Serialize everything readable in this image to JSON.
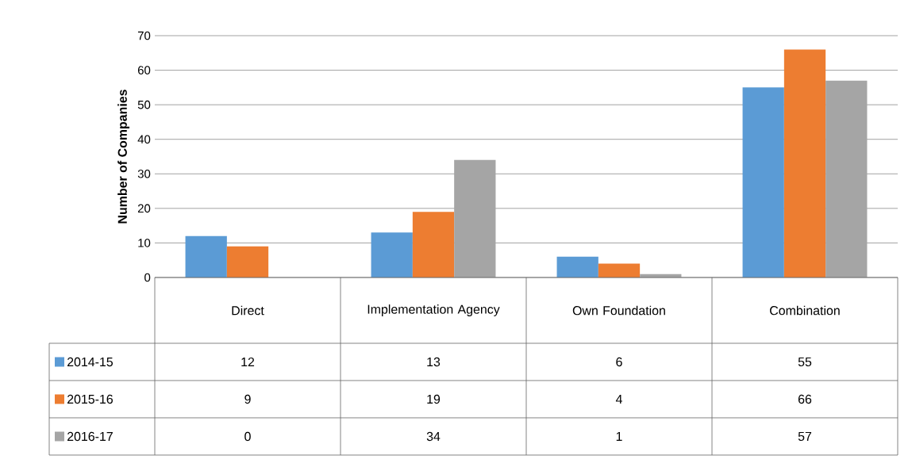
{
  "chart_data": {
    "type": "bar",
    "ylabel": "Number of Companies",
    "categories": [
      "Direct",
      "Implementation Agency",
      "Own Foundation",
      "Combination"
    ],
    "series": [
      {
        "name": "2014-15",
        "color": "#5b9bd5",
        "values": [
          12,
          13,
          6,
          55
        ]
      },
      {
        "name": "2015-16",
        "color": "#ed7d31",
        "values": [
          9,
          19,
          4,
          66
        ]
      },
      {
        "name": "2016-17",
        "color": "#a5a5a5",
        "values": [
          0,
          34,
          1,
          57
        ]
      }
    ],
    "ylim": [
      0,
      70
    ],
    "yticks": [
      0,
      10,
      20,
      30,
      40,
      50,
      60,
      70
    ],
    "grid": "y",
    "legend": "bottom",
    "data_labels": true
  }
}
